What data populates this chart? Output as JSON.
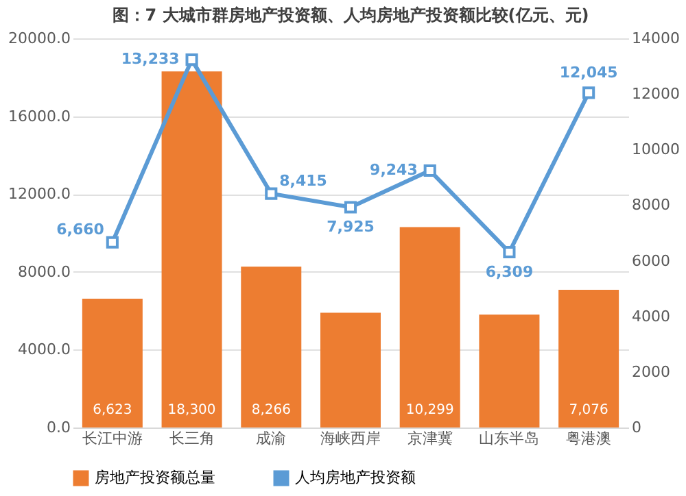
{
  "chart_data": {
    "type": "bar",
    "title": "图：7 大城市群房地产投资额、人均房地产投资额比较(亿元、元)",
    "categories": [
      "长江中游",
      "长三角",
      "成渝",
      "海峡西岸",
      "京津冀",
      "山东半岛",
      "粤港澳"
    ],
    "series": [
      {
        "name": "房地产投资额总量",
        "color": "#ed7d31",
        "values": [
          6623,
          18300,
          8266,
          5900,
          10299,
          5800,
          7076
        ],
        "value_labels": [
          "6,623",
          "18,300",
          "8,266",
          null,
          "10,299",
          null,
          "7,076"
        ]
      },
      {
        "name": "人均房地产投资额",
        "type": "line",
        "axis": "y2",
        "color": "#5b9bd5",
        "values": [
          6660,
          13233,
          8415,
          7925,
          9243,
          6309,
          12045
        ],
        "value_labels": [
          "6,660",
          "13,233",
          "8,415",
          "7,925",
          "9,243",
          "6,309",
          "12,045"
        ]
      }
    ],
    "ylim": [
      0,
      20000
    ],
    "yticks": [
      {
        "value": 0,
        "label": "0.0"
      },
      {
        "value": 4000,
        "label": "4000.0"
      },
      {
        "value": 8000,
        "label": "8000.0"
      },
      {
        "value": 12000,
        "label": "12000.0"
      },
      {
        "value": 16000,
        "label": "16000.0"
      },
      {
        "value": 20000,
        "label": "20000.0"
      }
    ],
    "y2lim": [
      0,
      14000
    ],
    "y2ticks": [
      0,
      2000,
      4000,
      6000,
      8000,
      10000,
      12000,
      14000
    ],
    "grid": "y",
    "legend": "bottom",
    "marker": "square"
  }
}
